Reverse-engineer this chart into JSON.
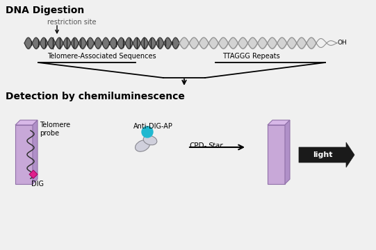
{
  "bg_color": "#f0f0f0",
  "title1": "DNA Digestion",
  "title2": "Detection by chemiluminescence",
  "label_restriction": "restriction site",
  "label_telomere_assoc": "Telomere-Associated Sequences",
  "label_ttaggg": "TTAGGG Repeats",
  "label_OH": "OH",
  "label_telomere_probe": "Telomere\nprobe",
  "label_DIG": "DIG",
  "label_anti_dig": "Anti-DIG-AP",
  "label_cpd": "CPD-",
  "label_cpd_italic": "Star",
  "label_light": "light",
  "membrane_color": "#c8a8d8",
  "membrane_edge": "#9070a8",
  "membrane_top": "#d8b8e8",
  "membrane_right": "#b090c8",
  "dig_color": "#e0208c",
  "antibody_color": "#c8c8d8",
  "cyan_dot_color": "#20b8d0",
  "dark_arrow_color": "#1a1a1a",
  "dna_dark_fill": "#606060",
  "dna_light_fill": "#c8c8c8",
  "dna_dark_edge": "#303030",
  "dna_light_edge": "#909090"
}
